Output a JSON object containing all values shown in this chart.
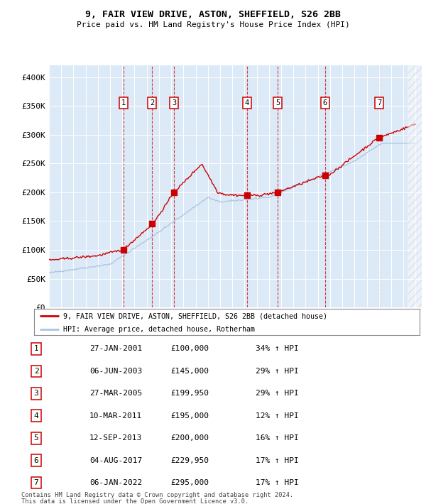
{
  "title1": "9, FAIR VIEW DRIVE, ASTON, SHEFFIELD, S26 2BB",
  "title2": "Price paid vs. HM Land Registry's House Price Index (HPI)",
  "background_color": "#dce9f7",
  "hpi_color": "#aac4e0",
  "price_color": "#cc0000",
  "ylim": [
    0,
    420000
  ],
  "yticks": [
    0,
    50000,
    100000,
    150000,
    200000,
    250000,
    300000,
    350000,
    400000
  ],
  "ytick_labels": [
    "£0",
    "£50K",
    "£100K",
    "£150K",
    "£200K",
    "£250K",
    "£300K",
    "£350K",
    "£400K"
  ],
  "sale_dates": [
    2001.08,
    2003.44,
    2005.24,
    2011.19,
    2013.71,
    2017.59,
    2022.02
  ],
  "sale_prices": [
    100000,
    145000,
    199950,
    195000,
    200000,
    229950,
    295000
  ],
  "sale_labels": [
    "1",
    "2",
    "3",
    "4",
    "5",
    "6",
    "7"
  ],
  "sale_info": [
    [
      "1",
      "27-JAN-2001",
      "£100,000",
      "34% ↑ HPI"
    ],
    [
      "2",
      "06-JUN-2003",
      "£145,000",
      "29% ↑ HPI"
    ],
    [
      "3",
      "27-MAR-2005",
      "£199,950",
      "29% ↑ HPI"
    ],
    [
      "4",
      "10-MAR-2011",
      "£195,000",
      "12% ↑ HPI"
    ],
    [
      "5",
      "12-SEP-2013",
      "£200,000",
      "16% ↑ HPI"
    ],
    [
      "6",
      "04-AUG-2017",
      "£229,950",
      "17% ↑ HPI"
    ],
    [
      "7",
      "06-JAN-2022",
      "£295,000",
      "17% ↑ HPI"
    ]
  ],
  "legend_line1": "9, FAIR VIEW DRIVE, ASTON, SHEFFIELD, S26 2BB (detached house)",
  "legend_line2": "HPI: Average price, detached house, Rotherham",
  "footer1": "Contains HM Land Registry data © Crown copyright and database right 2024.",
  "footer2": "This data is licensed under the Open Government Licence v3.0.",
  "xmin": 1995,
  "xmax": 2025.5
}
